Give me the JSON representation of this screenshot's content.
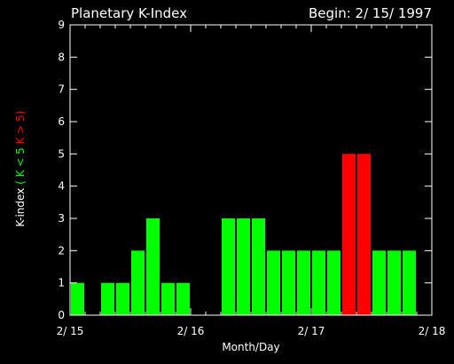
{
  "chart_data": {
    "type": "bar",
    "title": "Planetary K-Index",
    "begin_label": "Begin: 2/ 15/ 1997",
    "xlabel": "Month/Day",
    "ylabel_parts": [
      {
        "text": "K-index",
        "color": "#ffffff"
      },
      {
        "text": "( K < 5",
        "color": "#00ff00"
      },
      {
        "text": "K > 5)",
        "color": "#ff0000"
      }
    ],
    "ylim": [
      0,
      9
    ],
    "yticks": [
      0,
      1,
      2,
      3,
      4,
      5,
      6,
      7,
      8,
      9
    ],
    "x_tick_labels": [
      "2/ 15",
      "2/ 16",
      "2/ 17",
      "2/ 18"
    ],
    "intervals_per_day": 8,
    "days": 3,
    "values": [
      1,
      0,
      1,
      1,
      2,
      3,
      1,
      1,
      0,
      0,
      3,
      3,
      3,
      2,
      2,
      2,
      2,
      2,
      5,
      5,
      2,
      2,
      2,
      0
    ],
    "threshold": 5,
    "colors": {
      "low": "#00ff00",
      "high": "#ff0000",
      "axis": "#ffffff",
      "background": "#000000"
    }
  }
}
